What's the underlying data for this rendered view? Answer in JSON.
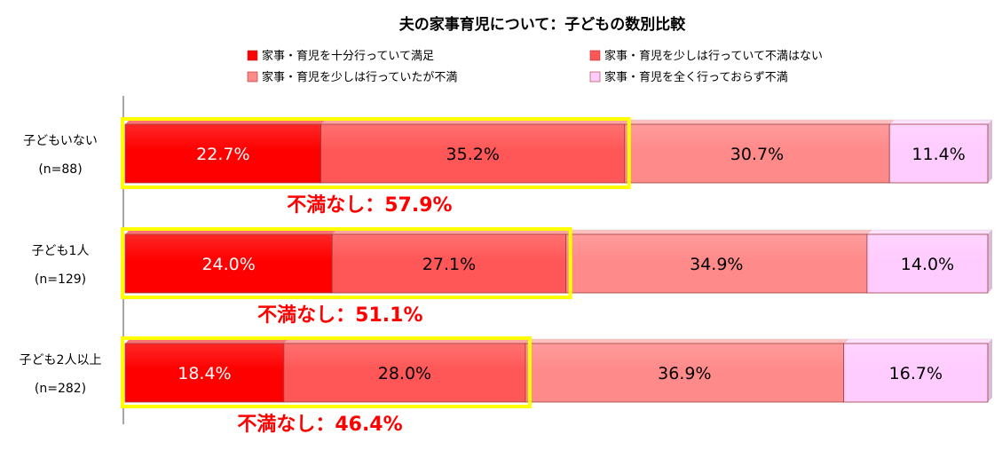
{
  "chart_data": {
    "type": "bar",
    "orientation": "horizontal",
    "stacked": true,
    "percent": true,
    "title": "夫の家事育児について：子どもの数別比較",
    "xlim": [
      0,
      100
    ],
    "legend_position": "top",
    "categories": [
      {
        "name": "子どもいない",
        "n": "(n=88)"
      },
      {
        "name": "子ども1人",
        "n": "(n=129)"
      },
      {
        "name": "子ども2人以上",
        "n": "(n=282)"
      }
    ],
    "series": [
      {
        "name": "家事・育児を十分行っていて満足",
        "color": "#ff0000",
        "values": [
          22.7,
          24.0,
          18.4
        ]
      },
      {
        "name": "家事・育児を少しは行っていて不満はない",
        "color": "#ff5757",
        "values": [
          35.2,
          27.1,
          28.0
        ]
      },
      {
        "name": "家事・育児を少しは行っていたが不満",
        "color": "#ff8a8a",
        "values": [
          30.7,
          34.9,
          36.9
        ]
      },
      {
        "name": "家事・育児を全く行っておらず不満",
        "color": "#ffccff",
        "values": [
          11.4,
          14.0,
          16.7
        ]
      }
    ],
    "value_labels": [
      [
        "22.7%",
        "35.2%",
        "30.7%",
        "11.4%"
      ],
      [
        "24.0%",
        "27.1%",
        "34.9%",
        "14.0%"
      ],
      [
        "18.4%",
        "28.0%",
        "36.9%",
        "16.7%"
      ]
    ],
    "annotations": [
      {
        "text": "不満なし：57.9%",
        "value": 57.9
      },
      {
        "text": "不満なし：51.1%",
        "value": 51.1
      },
      {
        "text": "不満なし：46.4%",
        "value": 46.4
      }
    ],
    "colors": {
      "highlight_box": "#ffff00",
      "annotation_text": "#ff0000",
      "axis": "#888888"
    }
  }
}
